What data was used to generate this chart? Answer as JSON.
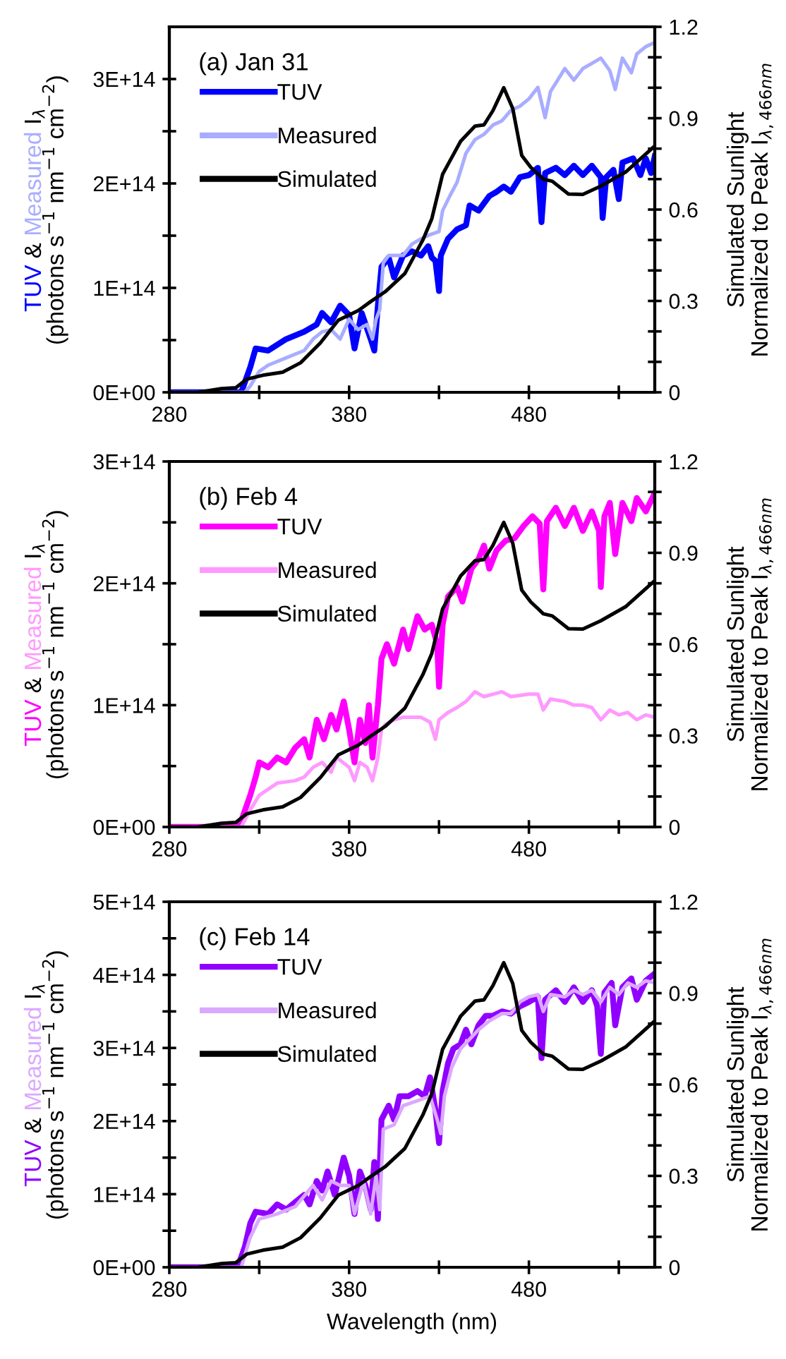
{
  "chart_data": [
    {
      "type": "line",
      "title": "(a) Jan 31",
      "ylabel": "TUV & Measured I$_{λ}$\n(photons s$^{−1}$ nm$^{−1}$ cm$^{−2}$)",
      "y2label": "Simulated Sunlight\nNormalized to Peak I$_{λ,466nm}$",
      "xlim": [
        280,
        550
      ],
      "xticks": [
        280,
        {
          "value": 330,
          "label": null
        },
        380,
        {
          "value": 430,
          "label": null
        },
        480,
        {
          "value": 530,
          "label": null
        }
      ],
      "ylim": [
        0,
        350000000000000.0
      ],
      "yticks": [
        {
          "value": 0,
          "label": "0E+00"
        },
        {
          "value": 50000000000000.0,
          "label": null
        },
        {
          "value": 100000000000000.0,
          "label": "1E+14"
        },
        {
          "value": 150000000000000.0,
          "label": null
        },
        {
          "value": 200000000000000.0,
          "label": "2E+14"
        },
        {
          "value": 250000000000000.0,
          "label": null
        },
        {
          "value": 300000000000000.0,
          "label": "3E+14"
        }
      ],
      "y2lim": [
        0,
        1.2
      ],
      "y2ticks": [
        0,
        {
          "value": 0.1,
          "label": null
        },
        {
          "value": 0.2,
          "label": null
        },
        0.3,
        {
          "value": 0.4,
          "label": null
        },
        {
          "value": 0.5,
          "label": null
        },
        0.6,
        {
          "value": 0.7,
          "label": null
        },
        {
          "value": 0.8,
          "label": null
        },
        0.9,
        {
          "value": 1.0,
          "label": null
        },
        {
          "value": 1.1,
          "label": null
        },
        1.2
      ],
      "legend": "top left",
      "grid": false,
      "series": [
        {
          "name": "TUV",
          "color": "#0000ff",
          "x": [
            280,
            320,
            325,
            328,
            335,
            345,
            355,
            362,
            365,
            370,
            375,
            380,
            383,
            387,
            392,
            394,
            396,
            398,
            402,
            405,
            410,
            415,
            420,
            424,
            426,
            428,
            430,
            431,
            435,
            440,
            445,
            447,
            452,
            458,
            462,
            466,
            470,
            475,
            480,
            485,
            487,
            489,
            495,
            500,
            505,
            510,
            515,
            520,
            521,
            523,
            527,
            530,
            532,
            538,
            542,
            545,
            548,
            550
          ],
          "values": [
            0,
            0,
            24000000000000.0,
            42000000000000.0,
            40000000000000.0,
            51000000000000.0,
            58000000000000.0,
            65000000000000.0,
            76000000000000.0,
            67000000000000.0,
            83000000000000.0,
            74000000000000.0,
            42000000000000.0,
            76000000000000.0,
            51000000000000.0,
            40000000000000.0,
            83000000000000.0,
            120000000000000.0,
            129000000000000.0,
            110000000000000.0,
            131000000000000.0,
            135000000000000.0,
            131000000000000.0,
            140000000000000.0,
            129000000000000.0,
            126000000000000.0,
            97000000000000.0,
            131000000000000.0,
            147000000000000.0,
            156000000000000.0,
            160000000000000.0,
            179000000000000.0,
            174000000000000.0,
            188000000000000.0,
            192000000000000.0,
            197000000000000.0,
            192000000000000.0,
            206000000000000.0,
            208000000000000.0,
            215000000000000.0,
            163000000000000.0,
            210000000000000.0,
            215000000000000.0,
            208000000000000.0,
            217000000000000.0,
            208000000000000.0,
            217000000000000.0,
            206000000000000.0,
            167000000000000.0,
            206000000000000.0,
            213000000000000.0,
            185000000000000.0,
            220000000000000.0,
            224000000000000.0,
            208000000000000.0,
            224000000000000.0,
            210000000000000.0,
            226000000000000.0
          ]
        },
        {
          "name": "Measured",
          "color": "#a9adff",
          "x": [
            280,
            322,
            325,
            330,
            335,
            345,
            355,
            360,
            365,
            370,
            375,
            380,
            385,
            390,
            393,
            395,
            397,
            399,
            402,
            410,
            415,
            420,
            425,
            430,
            432,
            436,
            440,
            445,
            450,
            455,
            460,
            465,
            470,
            475,
            480,
            485,
            489,
            492,
            500,
            505,
            510,
            515,
            520,
            525,
            528,
            532,
            537,
            540,
            545,
            550
          ],
          "values": [
            0,
            0,
            6000000000000.0,
            20000000000000.0,
            26000000000000.0,
            33000000000000.0,
            40000000000000.0,
            51000000000000.0,
            58000000000000.0,
            60000000000000.0,
            51000000000000.0,
            70000000000000.0,
            60000000000000.0,
            65000000000000.0,
            51000000000000.0,
            70000000000000.0,
            79000000000000.0,
            124000000000000.0,
            131000000000000.0,
            131000000000000.0,
            142000000000000.0,
            147000000000000.0,
            151000000000000.0,
            154000000000000.0,
            174000000000000.0,
            188000000000000.0,
            201000000000000.0,
            229000000000000.0,
            242000000000000.0,
            247000000000000.0,
            256000000000000.0,
            260000000000000.0,
            270000000000000.0,
            274000000000000.0,
            281000000000000.0,
            292000000000000.0,
            263000000000000.0,
            288000000000000.0,
            310000000000000.0,
            299000000000000.0,
            310000000000000.0,
            315000000000000.0,
            320000000000000.0,
            308000000000000.0,
            290000000000000.0,
            320000000000000.0,
            306000000000000.0,
            324000000000000.0,
            331000000000000.0,
            335000000000000.0
          ]
        },
        {
          "name": "Simulated",
          "color": "#000000",
          "axis": "y2",
          "x": [
            280,
            296,
            309,
            317,
            323,
            332,
            343,
            353,
            364,
            374,
            385,
            392,
            400,
            411,
            416,
            421,
            426,
            432,
            437,
            442,
            450,
            455,
            460,
            466,
            471,
            476,
            481,
            488,
            493,
            502,
            510,
            520,
            534,
            550
          ],
          "values": [
            0,
            0,
            0.012,
            0.015,
            0.043,
            0.056,
            0.066,
            0.097,
            0.162,
            0.237,
            0.268,
            0.298,
            0.33,
            0.39,
            0.445,
            0.5,
            0.57,
            0.716,
            0.77,
            0.824,
            0.874,
            0.878,
            0.925,
            1.0,
            0.932,
            0.778,
            0.739,
            0.7,
            0.693,
            0.651,
            0.65,
            0.677,
            0.724,
            0.809
          ]
        }
      ]
    },
    {
      "type": "line",
      "title": "(b) Feb 4",
      "ylabel": "TUV & Measured I$_{λ}$\n(photons s$^{−1}$ nm$^{−1}$ cm$^{−2}$)",
      "y2label": "Simulated Sunlight\nNormalized to Peak I$_{λ,466nm}$",
      "xlim": [
        280,
        550
      ],
      "xticks": [
        280,
        {
          "value": 330,
          "label": null
        },
        380,
        {
          "value": 430,
          "label": null
        },
        480,
        {
          "value": 530,
          "label": null
        }
      ],
      "ylim": [
        0,
        300000000000000.0
      ],
      "yticks": [
        {
          "value": 0,
          "label": "0E+00"
        },
        {
          "value": 50000000000000.0,
          "label": null
        },
        {
          "value": 100000000000000.0,
          "label": "1E+14"
        },
        {
          "value": 150000000000000.0,
          "label": null
        },
        {
          "value": 200000000000000.0,
          "label": "2E+14"
        },
        {
          "value": 250000000000000.0,
          "label": null
        },
        {
          "value": 300000000000000.0,
          "label": "3E+14"
        }
      ],
      "y2lim": [
        0,
        1.2
      ],
      "y2ticks": [
        0,
        {
          "value": 0.1,
          "label": null
        },
        {
          "value": 0.2,
          "label": null
        },
        0.3,
        {
          "value": 0.4,
          "label": null
        },
        {
          "value": 0.5,
          "label": null
        },
        0.6,
        {
          "value": 0.7,
          "label": null
        },
        {
          "value": 0.8,
          "label": null
        },
        0.9,
        {
          "value": 1.0,
          "label": null
        },
        {
          "value": 1.1,
          "label": null
        },
        1.2
      ],
      "legend": "top left",
      "grid": false,
      "series": [
        {
          "name": "TUV",
          "color": "#ff00ff",
          "x": [
            280,
            315,
            320,
            325,
            328,
            330,
            335,
            340,
            345,
            350,
            355,
            358,
            362,
            366,
            370,
            373,
            377,
            380,
            383,
            386,
            389,
            391,
            393,
            396,
            398,
            401,
            405,
            410,
            413,
            418,
            422,
            426,
            429,
            430,
            432,
            435,
            440,
            443,
            448,
            452,
            455,
            458,
            462,
            467,
            472,
            477,
            482,
            486,
            488,
            490,
            495,
            500,
            505,
            510,
            515,
            519,
            520,
            522,
            525,
            528,
            532,
            537,
            540,
            545,
            550
          ],
          "values": [
            0,
            0,
            5000000000000.0,
            26000000000000.0,
            41000000000000.0,
            53000000000000.0,
            49000000000000.0,
            57000000000000.0,
            53000000000000.0,
            65000000000000.0,
            72000000000000.0,
            57000000000000.0,
            88000000000000.0,
            72000000000000.0,
            92000000000000.0,
            80000000000000.0,
            103000000000000.0,
            80000000000000.0,
            53000000000000.0,
            88000000000000.0,
            69000000000000.0,
            100000000000000.0,
            57000000000000.0,
            100000000000000.0,
            138000000000000.0,
            150000000000000.0,
            134000000000000.0,
            162000000000000.0,
            146000000000000.0,
            173000000000000.0,
            162000000000000.0,
            166000000000000.0,
            150000000000000.0,
            115000000000000.0,
            166000000000000.0,
            189000000000000.0,
            197000000000000.0,
            185000000000000.0,
            212000000000000.0,
            220000000000000.0,
            231000000000000.0,
            212000000000000.0,
            227000000000000.0,
            235000000000000.0,
            237000000000000.0,
            247000000000000.0,
            255000000000000.0,
            249000000000000.0,
            195000000000000.0,
            251000000000000.0,
            262000000000000.0,
            247000000000000.0,
            262000000000000.0,
            243000000000000.0,
            259000000000000.0,
            243000000000000.0,
            197000000000000.0,
            255000000000000.0,
            266000000000000.0,
            224000000000000.0,
            266000000000000.0,
            251000000000000.0,
            270000000000000.0,
            259000000000000.0,
            274000000000000.0
          ]
        },
        {
          "name": "Measured",
          "color": "#ff99ff",
          "x": [
            280,
            320,
            325,
            330,
            340,
            350,
            355,
            360,
            365,
            370,
            373,
            380,
            383,
            386,
            390,
            393,
            396,
            398,
            400,
            405,
            410,
            420,
            425,
            428,
            430,
            435,
            440,
            445,
            450,
            455,
            460,
            465,
            470,
            475,
            480,
            485,
            488,
            492,
            500,
            505,
            510,
            515,
            520,
            525,
            530,
            535,
            540,
            545,
            550
          ],
          "values": [
            0,
            0,
            14000000000000.0,
            26000000000000.0,
            36000000000000.0,
            38000000000000.0,
            41000000000000.0,
            49000000000000.0,
            53000000000000.0,
            45000000000000.0,
            57000000000000.0,
            49000000000000.0,
            38000000000000.0,
            53000000000000.0,
            49000000000000.0,
            38000000000000.0,
            57000000000000.0,
            80000000000000.0,
            84000000000000.0,
            88000000000000.0,
            90000000000000.0,
            90000000000000.0,
            86000000000000.0,
            72000000000000.0,
            88000000000000.0,
            94000000000000.0,
            98000000000000.0,
            103000000000000.0,
            111000000000000.0,
            107000000000000.0,
            109000000000000.0,
            111000000000000.0,
            107000000000000.0,
            108000000000000.0,
            109000000000000.0,
            109000000000000.0,
            96000000000000.0,
            105000000000000.0,
            103000000000000.0,
            100000000000000.0,
            100000000000000.0,
            98000000000000.0,
            88000000000000.0,
            96000000000000.0,
            92000000000000.0,
            94000000000000.0,
            88000000000000.0,
            92000000000000.0,
            90000000000000.0
          ]
        },
        {
          "name": "Simulated",
          "color": "#000000",
          "axis": "y2",
          "x": [
            280,
            296,
            309,
            317,
            323,
            332,
            343,
            353,
            364,
            374,
            385,
            392,
            400,
            411,
            416,
            421,
            426,
            432,
            437,
            442,
            450,
            455,
            460,
            466,
            471,
            476,
            481,
            488,
            493,
            502,
            510,
            520,
            534,
            550
          ],
          "values": [
            0,
            0,
            0.012,
            0.015,
            0.043,
            0.056,
            0.066,
            0.097,
            0.162,
            0.237,
            0.268,
            0.298,
            0.33,
            0.39,
            0.445,
            0.5,
            0.57,
            0.716,
            0.77,
            0.824,
            0.874,
            0.878,
            0.925,
            1.0,
            0.932,
            0.778,
            0.739,
            0.7,
            0.693,
            0.651,
            0.65,
            0.677,
            0.724,
            0.809
          ]
        }
      ]
    },
    {
      "type": "line",
      "title": "(c) Feb 14",
      "xlabel": "Wavelength (nm)",
      "ylabel": "TUV & Measured I$_{λ}$\n(photons s$^{−1}$ nm$^{−1}$ cm$^{−2}$)",
      "y2label": "Simulated Sunlight\nNormalized to Peak I$_{λ,466nm}$",
      "xlim": [
        280,
        550
      ],
      "xticks": [
        280,
        {
          "value": 330,
          "label": null
        },
        380,
        {
          "value": 430,
          "label": null
        },
        480,
        {
          "value": 530,
          "label": null
        }
      ],
      "ylim": [
        0,
        500000000000000.0
      ],
      "yticks": [
        {
          "value": 0,
          "label": "0E+00"
        },
        {
          "value": 50000000000000.0,
          "label": null
        },
        {
          "value": 100000000000000.0,
          "label": "1E+14"
        },
        {
          "value": 150000000000000.0,
          "label": null
        },
        {
          "value": 200000000000000.0,
          "label": "2E+14"
        },
        {
          "value": 250000000000000.0,
          "label": null
        },
        {
          "value": 300000000000000.0,
          "label": "3E+14"
        },
        {
          "value": 350000000000000.0,
          "label": null
        },
        {
          "value": 400000000000000.0,
          "label": "4E+14"
        },
        {
          "value": 450000000000000.0,
          "label": null
        },
        {
          "value": 500000000000000.0,
          "label": "5E+14"
        }
      ],
      "y2lim": [
        0,
        1.2
      ],
      "y2ticks": [
        0,
        {
          "value": 0.1,
          "label": null
        },
        {
          "value": 0.2,
          "label": null
        },
        0.3,
        {
          "value": 0.4,
          "label": null
        },
        {
          "value": 0.5,
          "label": null
        },
        0.6,
        {
          "value": 0.7,
          "label": null
        },
        {
          "value": 0.8,
          "label": null
        },
        0.9,
        {
          "value": 1.0,
          "label": null
        },
        {
          "value": 1.1,
          "label": null
        },
        1.2
      ],
      "legend": "top left",
      "grid": false,
      "series": [
        {
          "name": "TUV",
          "color": "#9000ff",
          "x": [
            280,
            318,
            322,
            325,
            328,
            335,
            340,
            345,
            350,
            355,
            358,
            362,
            365,
            368,
            372,
            377,
            380,
            383,
            386,
            389,
            392,
            394,
            396,
            398,
            402,
            405,
            408,
            413,
            418,
            422,
            425,
            428,
            430,
            432,
            435,
            438,
            442,
            445,
            448,
            452,
            456,
            460,
            465,
            470,
            475,
            480,
            485,
            487,
            489,
            495,
            500,
            505,
            510,
            515,
            518,
            520,
            522,
            526,
            528,
            532,
            537,
            540,
            545,
            550
          ],
          "values": [
            0,
            0,
            28000000000000.0,
            60000000000000.0,
            76000000000000.0,
            73000000000000.0,
            86000000000000.0,
            79000000000000.0,
            89000000000000.0,
            99000000000000.0,
            86000000000000.0,
            118000000000000.0,
            105000000000000.0,
            131000000000000.0,
            99000000000000.0,
            150000000000000.0,
            125000000000000.0,
            73000000000000.0,
            131000000000000.0,
            112000000000000.0,
            79000000000000.0,
            144000000000000.0,
            66000000000000.0,
            202000000000000.0,
            221000000000000.0,
            202000000000000.0,
            234000000000000.0,
            234000000000000.0,
            241000000000000.0,
            234000000000000.0,
            260000000000000.0,
            215000000000000.0,
            170000000000000.0,
            241000000000000.0,
            279000000000000.0,
            299000000000000.0,
            305000000000000.0,
            325000000000000.0,
            305000000000000.0,
            331000000000000.0,
            344000000000000.0,
            344000000000000.0,
            350000000000000.0,
            347000000000000.0,
            357000000000000.0,
            363000000000000.0,
            370000000000000.0,
            286000000000000.0,
            366000000000000.0,
            379000000000000.0,
            363000000000000.0,
            383000000000000.0,
            363000000000000.0,
            379000000000000.0,
            357000000000000.0,
            292000000000000.0,
            376000000000000.0,
            389000000000000.0,
            331000000000000.0,
            383000000000000.0,
            395000000000000.0,
            366000000000000.0,
            392000000000000.0,
            402000000000000.0
          ]
        },
        {
          "name": "Measured",
          "color": "#dba8ff",
          "x": [
            280,
            320,
            325,
            330,
            340,
            350,
            360,
            365,
            370,
            375,
            380,
            383,
            388,
            392,
            395,
            397,
            399,
            405,
            410,
            418,
            425,
            429,
            431,
            433,
            437,
            442,
            447,
            452,
            458,
            465,
            470,
            475,
            480,
            485,
            488,
            492,
            500,
            505,
            510,
            515,
            520,
            525,
            530,
            535,
            540,
            545,
            550
          ],
          "values": [
            0,
            0,
            41000000000000.0,
            66000000000000.0,
            73000000000000.0,
            83000000000000.0,
            112000000000000.0,
            92000000000000.0,
            118000000000000.0,
            112000000000000.0,
            112000000000000.0,
            73000000000000.0,
            118000000000000.0,
            73000000000000.0,
            125000000000000.0,
            79000000000000.0,
            189000000000000.0,
            195000000000000.0,
            221000000000000.0,
            228000000000000.0,
            234000000000000.0,
            202000000000000.0,
            183000000000000.0,
            234000000000000.0,
            273000000000000.0,
            299000000000000.0,
            312000000000000.0,
            325000000000000.0,
            337000000000000.0,
            347000000000000.0,
            347000000000000.0,
            363000000000000.0,
            370000000000000.0,
            373000000000000.0,
            350000000000000.0,
            373000000000000.0,
            370000000000000.0,
            379000000000000.0,
            373000000000000.0,
            379000000000000.0,
            363000000000000.0,
            383000000000000.0,
            373000000000000.0,
            389000000000000.0,
            383000000000000.0,
            392000000000000.0,
            389000000000000.0
          ]
        },
        {
          "name": "Simulated",
          "color": "#000000",
          "axis": "y2",
          "x": [
            280,
            296,
            309,
            317,
            323,
            332,
            343,
            353,
            364,
            374,
            385,
            392,
            400,
            411,
            416,
            421,
            426,
            432,
            437,
            442,
            450,
            455,
            460,
            466,
            471,
            476,
            481,
            488,
            493,
            502,
            510,
            520,
            534,
            550
          ],
          "values": [
            0,
            0,
            0.012,
            0.015,
            0.043,
            0.056,
            0.066,
            0.097,
            0.162,
            0.237,
            0.268,
            0.298,
            0.33,
            0.39,
            0.445,
            0.5,
            0.57,
            0.716,
            0.77,
            0.824,
            0.874,
            0.878,
            0.925,
            1.0,
            0.932,
            0.778,
            0.739,
            0.7,
            0.693,
            0.651,
            0.65,
            0.677,
            0.724,
            0.809
          ]
        }
      ]
    }
  ]
}
